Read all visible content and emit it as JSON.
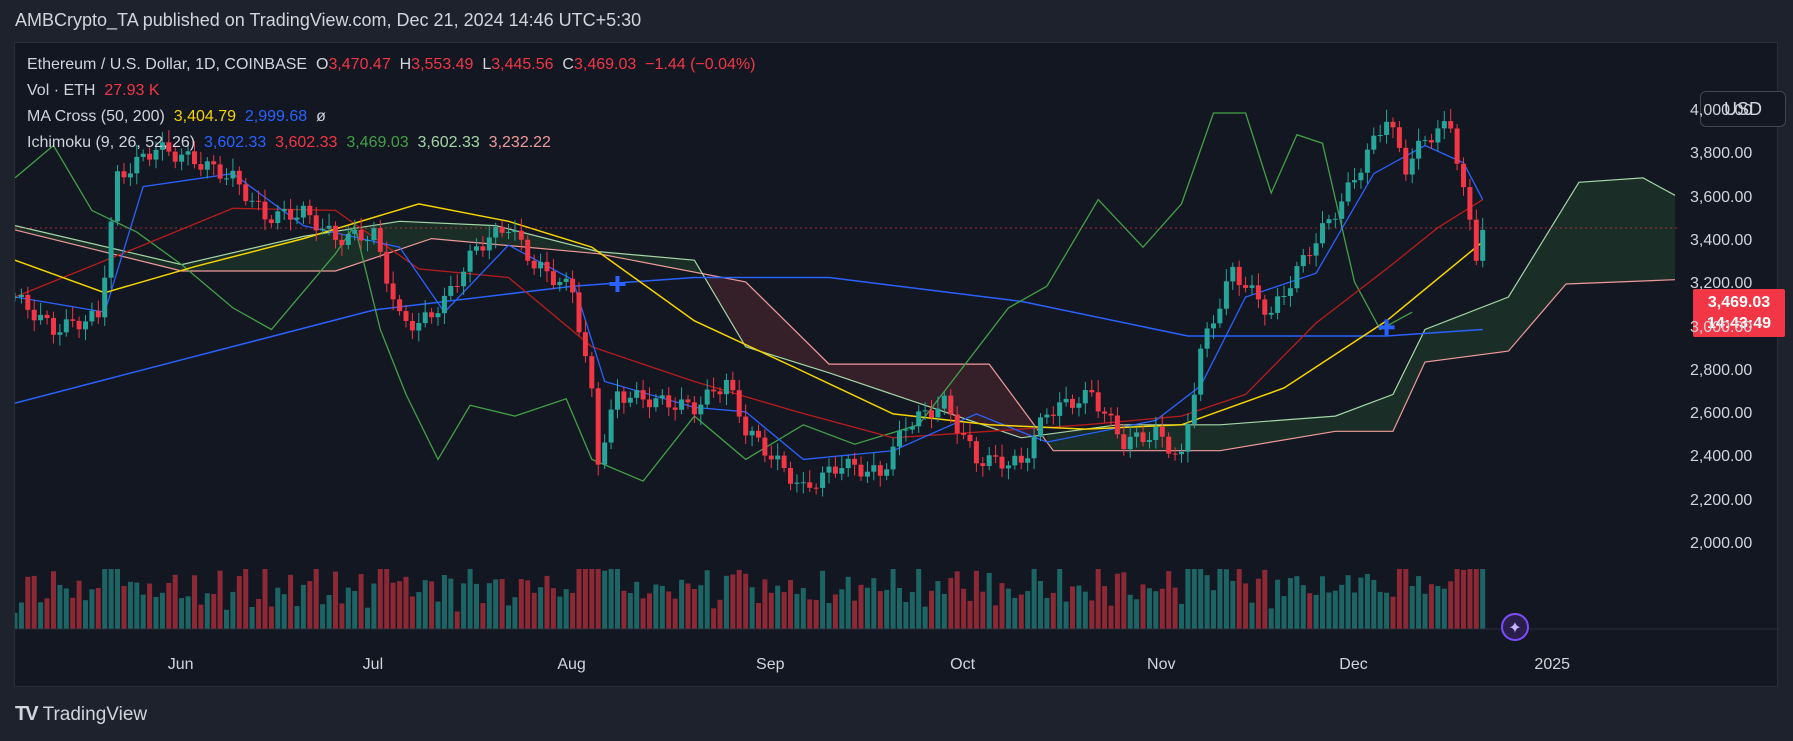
{
  "publisher": "AMBCrypto_TA published on TradingView.com, Dec 21, 2024 14:46 UTC+5:30",
  "legend": {
    "symbol": "Ethereum / U.S. Dollar, 1D, COINBASE",
    "o_label": "O",
    "o_value": "3,470.47",
    "h_label": "H",
    "h_value": "3,553.49",
    "l_label": "L",
    "l_value": "3,445.56",
    "c_label": "C",
    "c_value": "3,469.03",
    "change": "−1.44 (−0.04%)",
    "vol_label": "Vol · ETH",
    "vol_value": "27.93 K",
    "ma_label": "MA Cross (50, 200)",
    "ma_fast": "3,404.79",
    "ma_slow": "2,999.68",
    "ma_flag": "ø",
    "ichi_label": "Ichimoku (9, 26, 52, 26)",
    "ichi_conv": "3,602.33",
    "ichi_base": "3,602.33",
    "ichi_lag": "3,469.03",
    "ichi_spanA": "3,602.33",
    "ichi_spanB": "3,232.22"
  },
  "currency_button": "USD",
  "price_badge": {
    "price": "3,469.03",
    "countdown": "14:43:49"
  },
  "y_ticks": [
    "4,000.00",
    "3,800.00",
    "3,600.00",
    "3,400.00",
    "3,200.00",
    "3,000.00",
    "2,800.00",
    "2,600.00",
    "2,400.00",
    "2,200.00",
    "2,000.00"
  ],
  "x_ticks": [
    "Jun",
    "Jul",
    "Aug",
    "Sep",
    "Oct",
    "Nov",
    "Dec",
    "2025"
  ],
  "brand": "TradingView",
  "colors": {
    "up": "#26a69a",
    "down": "#f23645",
    "ma_fast": "#f5d400",
    "ma_slow": "#2962ff",
    "conversion": "#2962ff",
    "base": "#b71c1c",
    "lagging": "#43a047",
    "span_a": "#a5d6a7",
    "span_b": "#ef9a9a"
  },
  "chart_data": {
    "type": "candlestick",
    "y_range": [
      1950,
      4100
    ],
    "x_range": [
      "2024-05-06",
      "2025-01-20"
    ],
    "x_ticks": [
      "Jun",
      "Jul",
      "Aug",
      "Sep",
      "Oct",
      "Nov",
      "Dec",
      "2025"
    ],
    "close_anchors": [
      [
        "2024-05-06",
        3150
      ],
      [
        "2024-05-12",
        3000
      ],
      [
        "2024-05-19",
        3060
      ],
      [
        "2024-05-22",
        3700
      ],
      [
        "2024-05-28",
        3840
      ],
      [
        "2024-06-03",
        3780
      ],
      [
        "2024-06-09",
        3700
      ],
      [
        "2024-06-14",
        3520
      ],
      [
        "2024-06-20",
        3540
      ],
      [
        "2024-06-25",
        3420
      ],
      [
        "2024-07-01",
        3440
      ],
      [
        "2024-07-05",
        3050
      ],
      [
        "2024-07-08",
        3020
      ],
      [
        "2024-07-12",
        3130
      ],
      [
        "2024-07-17",
        3380
      ],
      [
        "2024-07-22",
        3480
      ],
      [
        "2024-07-26",
        3300
      ],
      [
        "2024-08-01",
        3180
      ],
      [
        "2024-08-04",
        2700
      ],
      [
        "2024-08-05",
        2400
      ],
      [
        "2024-08-08",
        2700
      ],
      [
        "2024-08-14",
        2670
      ],
      [
        "2024-08-20",
        2640
      ],
      [
        "2024-08-25",
        2760
      ],
      [
        "2024-08-28",
        2540
      ],
      [
        "2024-09-06",
        2260
      ],
      [
        "2024-09-12",
        2380
      ],
      [
        "2024-09-18",
        2330
      ],
      [
        "2024-09-22",
        2560
      ],
      [
        "2024-09-28",
        2660
      ],
      [
        "2024-10-03",
        2400
      ],
      [
        "2024-10-10",
        2380
      ],
      [
        "2024-10-14",
        2620
      ],
      [
        "2024-10-21",
        2700
      ],
      [
        "2024-10-26",
        2480
      ],
      [
        "2024-10-31",
        2520
      ],
      [
        "2024-11-04",
        2400
      ],
      [
        "2024-11-07",
        2900
      ],
      [
        "2024-11-12",
        3270
      ],
      [
        "2024-11-18",
        3070
      ],
      [
        "2024-11-24",
        3370
      ],
      [
        "2024-11-29",
        3590
      ],
      [
        "2024-12-01",
        3700
      ],
      [
        "2024-12-06",
        3980
      ],
      [
        "2024-12-09",
        3750
      ],
      [
        "2024-12-12",
        3880
      ],
      [
        "2024-12-16",
        3950
      ],
      [
        "2024-12-18",
        3630
      ],
      [
        "2024-12-20",
        3350
      ],
      [
        "2024-12-21",
        3469
      ]
    ],
    "ma_fast": [
      [
        "2024-05-06",
        3320
      ],
      [
        "2024-05-20",
        3170
      ],
      [
        "2024-06-03",
        3290
      ],
      [
        "2024-06-20",
        3420
      ],
      [
        "2024-07-08",
        3580
      ],
      [
        "2024-07-22",
        3500
      ],
      [
        "2024-08-04",
        3380
      ],
      [
        "2024-08-20",
        3040
      ],
      [
        "2024-09-05",
        2820
      ],
      [
        "2024-09-20",
        2610
      ],
      [
        "2024-10-05",
        2560
      ],
      [
        "2024-10-20",
        2540
      ],
      [
        "2024-11-04",
        2560
      ],
      [
        "2024-11-20",
        2730
      ],
      [
        "2024-12-06",
        3040
      ],
      [
        "2024-12-21",
        3405
      ]
    ],
    "ma_slow": [
      [
        "2024-05-06",
        2660
      ],
      [
        "2024-06-01",
        2860
      ],
      [
        "2024-07-01",
        3090
      ],
      [
        "2024-08-01",
        3200
      ],
      [
        "2024-08-20",
        3240
      ],
      [
        "2024-09-10",
        3240
      ],
      [
        "2024-10-10",
        3130
      ],
      [
        "2024-11-05",
        2970
      ],
      [
        "2024-12-06",
        2970
      ],
      [
        "2024-12-21",
        3000
      ]
    ],
    "conversion": [
      [
        "2024-05-06",
        3150
      ],
      [
        "2024-05-20",
        3080
      ],
      [
        "2024-05-26",
        3660
      ],
      [
        "2024-06-09",
        3720
      ],
      [
        "2024-06-20",
        3480
      ],
      [
        "2024-07-05",
        3380
      ],
      [
        "2024-07-12",
        3080
      ],
      [
        "2024-07-22",
        3390
      ],
      [
        "2024-08-01",
        3230
      ],
      [
        "2024-08-06",
        2760
      ],
      [
        "2024-08-20",
        2640
      ],
      [
        "2024-08-28",
        2620
      ],
      [
        "2024-09-06",
        2400
      ],
      [
        "2024-09-20",
        2440
      ],
      [
        "2024-10-03",
        2610
      ],
      [
        "2024-10-14",
        2480
      ],
      [
        "2024-10-31",
        2580
      ],
      [
        "2024-11-07",
        2740
      ],
      [
        "2024-11-14",
        3150
      ],
      [
        "2024-11-25",
        3260
      ],
      [
        "2024-12-04",
        3720
      ],
      [
        "2024-12-12",
        3850
      ],
      [
        "2024-12-18",
        3770
      ],
      [
        "2024-12-21",
        3600
      ]
    ],
    "base": [
      [
        "2024-05-06",
        3150
      ],
      [
        "2024-05-26",
        3390
      ],
      [
        "2024-06-09",
        3560
      ],
      [
        "2024-06-25",
        3550
      ],
      [
        "2024-07-08",
        3280
      ],
      [
        "2024-07-22",
        3240
      ],
      [
        "2024-08-04",
        2920
      ],
      [
        "2024-08-20",
        2760
      ],
      [
        "2024-09-05",
        2620
      ],
      [
        "2024-09-20",
        2500
      ],
      [
        "2024-10-05",
        2530
      ],
      [
        "2024-10-20",
        2560
      ],
      [
        "2024-11-04",
        2600
      ],
      [
        "2024-11-14",
        2700
      ],
      [
        "2024-11-25",
        3030
      ],
      [
        "2024-12-06",
        3280
      ],
      [
        "2024-12-14",
        3470
      ],
      [
        "2024-12-21",
        3600
      ]
    ],
    "lagging": [
      [
        "2024-05-06",
        3700
      ],
      [
        "2024-05-12",
        3850
      ],
      [
        "2024-05-18",
        3550
      ],
      [
        "2024-05-25",
        3450
      ],
      [
        "2024-06-01",
        3300
      ],
      [
        "2024-06-09",
        3100
      ],
      [
        "2024-06-15",
        3000
      ],
      [
        "2024-06-25",
        3350
      ],
      [
        "2024-06-28",
        3480
      ],
      [
        "2024-07-02",
        3000
      ],
      [
        "2024-07-06",
        2700
      ],
      [
        "2024-07-11",
        2400
      ],
      [
        "2024-07-16",
        2650
      ],
      [
        "2024-07-23",
        2600
      ],
      [
        "2024-07-31",
        2680
      ],
      [
        "2024-08-04",
        2400
      ],
      [
        "2024-08-12",
        2300
      ],
      [
        "2024-08-20",
        2600
      ],
      [
        "2024-08-28",
        2400
      ],
      [
        "2024-09-06",
        2560
      ],
      [
        "2024-09-14",
        2470
      ],
      [
        "2024-09-24",
        2560
      ],
      [
        "2024-10-08",
        3100
      ],
      [
        "2024-10-14",
        3200
      ],
      [
        "2024-10-22",
        3600
      ],
      [
        "2024-10-29",
        3380
      ],
      [
        "2024-11-04",
        3580
      ],
      [
        "2024-11-09",
        4000
      ],
      [
        "2024-11-14",
        4000
      ],
      [
        "2024-11-18",
        3630
      ],
      [
        "2024-11-22",
        3900
      ],
      [
        "2024-11-26",
        3860
      ],
      [
        "2024-12-01",
        3220
      ],
      [
        "2024-12-05",
        3000
      ],
      [
        "2024-12-10",
        3080
      ]
    ],
    "span_a": [
      [
        "2024-05-06",
        3480
      ],
      [
        "2024-06-01",
        3300
      ],
      [
        "2024-06-20",
        3430
      ],
      [
        "2024-07-05",
        3500
      ],
      [
        "2024-07-20",
        3480
      ],
      [
        "2024-08-05",
        3360
      ],
      [
        "2024-08-20",
        3320
      ],
      [
        "2024-08-28",
        2920
      ],
      [
        "2024-09-10",
        2800
      ],
      [
        "2024-09-25",
        2650
      ],
      [
        "2024-10-10",
        2500
      ],
      [
        "2024-10-25",
        2560
      ],
      [
        "2024-11-10",
        2560
      ],
      [
        "2024-11-28",
        2600
      ],
      [
        "2024-12-07",
        2700
      ],
      [
        "2024-12-12",
        3000
      ],
      [
        "2024-12-25",
        3150
      ],
      [
        "2025-01-05",
        3680
      ],
      [
        "2025-01-15",
        3700
      ],
      [
        "2025-01-20",
        3620
      ]
    ],
    "span_b": [
      [
        "2024-05-06",
        3460
      ],
      [
        "2024-06-01",
        3270
      ],
      [
        "2024-06-25",
        3270
      ],
      [
        "2024-07-10",
        3420
      ],
      [
        "2024-08-05",
        3350
      ],
      [
        "2024-08-28",
        3220
      ],
      [
        "2024-09-10",
        2840
      ],
      [
        "2024-10-05",
        2840
      ],
      [
        "2024-10-15",
        2440
      ],
      [
        "2024-11-10",
        2440
      ],
      [
        "2024-11-28",
        2530
      ],
      [
        "2024-12-07",
        2530
      ],
      [
        "2024-12-12",
        2850
      ],
      [
        "2024-12-25",
        2900
      ],
      [
        "2025-01-03",
        3210
      ],
      [
        "2025-01-20",
        3230
      ]
    ],
    "crosses": [
      {
        "date": "2024-08-08",
        "value": 3210
      },
      {
        "date": "2024-12-06",
        "value": 3010
      }
    ],
    "volume_range_k": [
      0,
      80
    ]
  }
}
